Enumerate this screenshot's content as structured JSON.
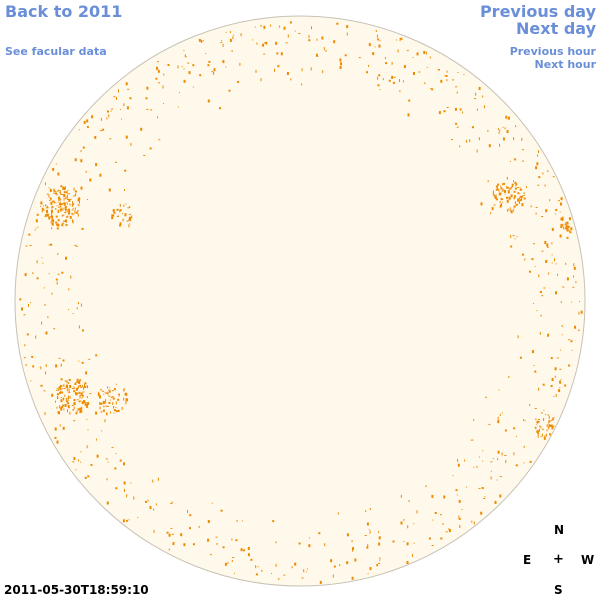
{
  "nav": {
    "back_label": "Back to 2011",
    "facular_label": "See facular data",
    "prev_day_label": "Previous day",
    "next_day_label": "Next day",
    "prev_hour_label": "Previous hour",
    "next_hour_label": "Next hour"
  },
  "compass": {
    "north": "N",
    "east": "E",
    "center": "+",
    "west": "W",
    "south": "S"
  },
  "timestamp": "2011-05-30T18:59:10",
  "colors": {
    "disk_fill": "#fff9ec",
    "disk_edge": "#c8c2b6",
    "facula": "#ee8a00",
    "link": "#6a8fd8"
  }
}
